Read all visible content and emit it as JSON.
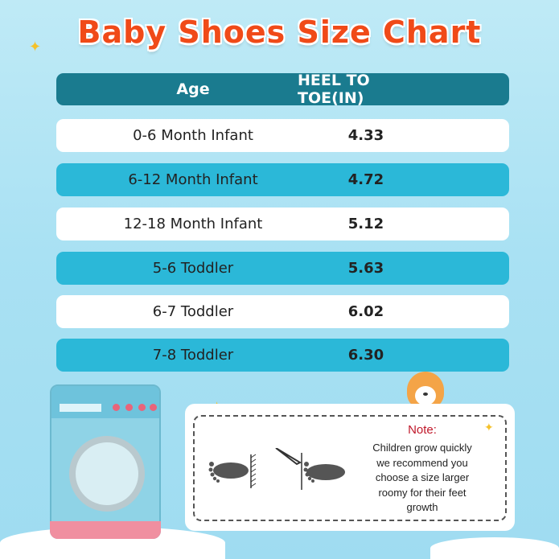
{
  "title": "Baby Shoes Size Chart",
  "chart_data": {
    "type": "table",
    "title": "Baby Shoes Size Chart",
    "columns": [
      "Age",
      "HEEL TO TOE(IN)"
    ],
    "rows": [
      [
        "0-6 Month Infant",
        "4.33"
      ],
      [
        "6-12 Month Infant",
        "4.72"
      ],
      [
        "12-18 Month Infant",
        "5.12"
      ],
      [
        "5-6 Toddler",
        "5.63"
      ],
      [
        "6-7 Toddler",
        "6.02"
      ],
      [
        "7-8 Toddler",
        "6.30"
      ]
    ]
  },
  "note": {
    "title": "Note:",
    "lines": [
      "Children grow quickly",
      "we recommend you",
      "choose a size larger",
      "roomy for their feet",
      "growth"
    ]
  },
  "colors": {
    "title": "#f04a18",
    "header": "#1a7b8f",
    "row_blue": "#2bb8d8",
    "row_white": "#ffffff",
    "note_title": "#c0182a"
  }
}
